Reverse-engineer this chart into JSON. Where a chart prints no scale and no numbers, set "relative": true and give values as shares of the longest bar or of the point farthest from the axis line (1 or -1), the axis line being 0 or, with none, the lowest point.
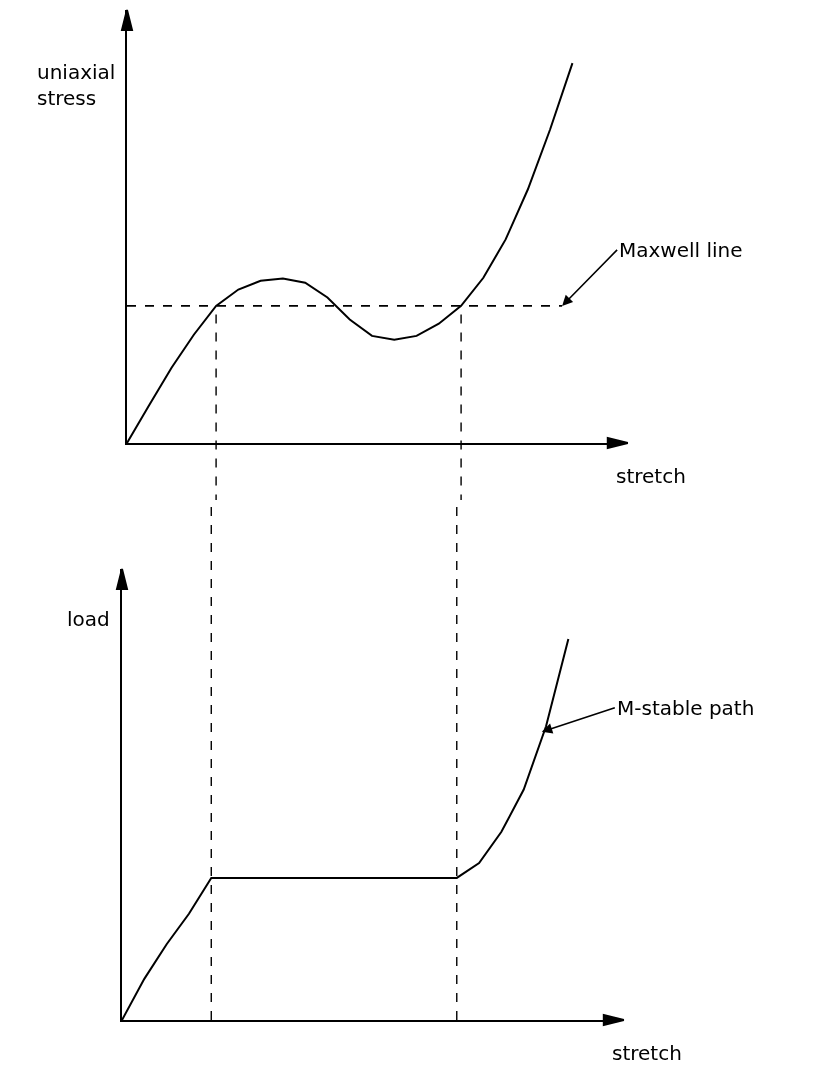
{
  "chart_data": [
    {
      "type": "line",
      "relative": true,
      "xlabel": "stretch",
      "ylabel": "uniaxial stress",
      "color": "#000000",
      "categories": [
        null,
        null,
        null,
        null,
        null,
        null,
        null,
        null,
        null,
        null,
        null,
        null,
        null,
        null,
        null,
        null,
        null,
        null,
        null,
        null,
        null,
        null,
        null
      ],
      "values": [
        0,
        0.1,
        0.198,
        0.285,
        0.361,
        0.404,
        0.427,
        0.433,
        0.422,
        0.383,
        0.325,
        0.282,
        0.272,
        0.282,
        0.314,
        0.361,
        0.435,
        0.536,
        0.668,
        0.826,
        1.0,
        null,
        null
      ],
      "ref_lines": [
        {
          "axis": "y",
          "value": 0.361,
          "label": "Maxwell line",
          "line_style": "dashed",
          "color": "#000000"
        }
      ]
    },
    {
      "type": "line",
      "relative": true,
      "xlabel": "stretch",
      "ylabel": "load",
      "color": "#000000",
      "annotations": [
        "M-stable path"
      ],
      "categories": [
        null,
        null,
        null,
        null,
        null,
        null,
        null,
        null,
        null,
        null,
        null,
        null,
        null,
        null,
        null,
        null,
        null,
        null,
        null,
        null,
        null,
        null,
        null
      ],
      "values": [
        0,
        0.108,
        0.199,
        0.279,
        0.373,
        0.373,
        0.373,
        0.373,
        0.373,
        0.373,
        0.373,
        0.373,
        0.373,
        0.373,
        0.373,
        0.373,
        0.412,
        0.494,
        0.605,
        0.771,
        1.0,
        null,
        null
      ]
    }
  ]
}
